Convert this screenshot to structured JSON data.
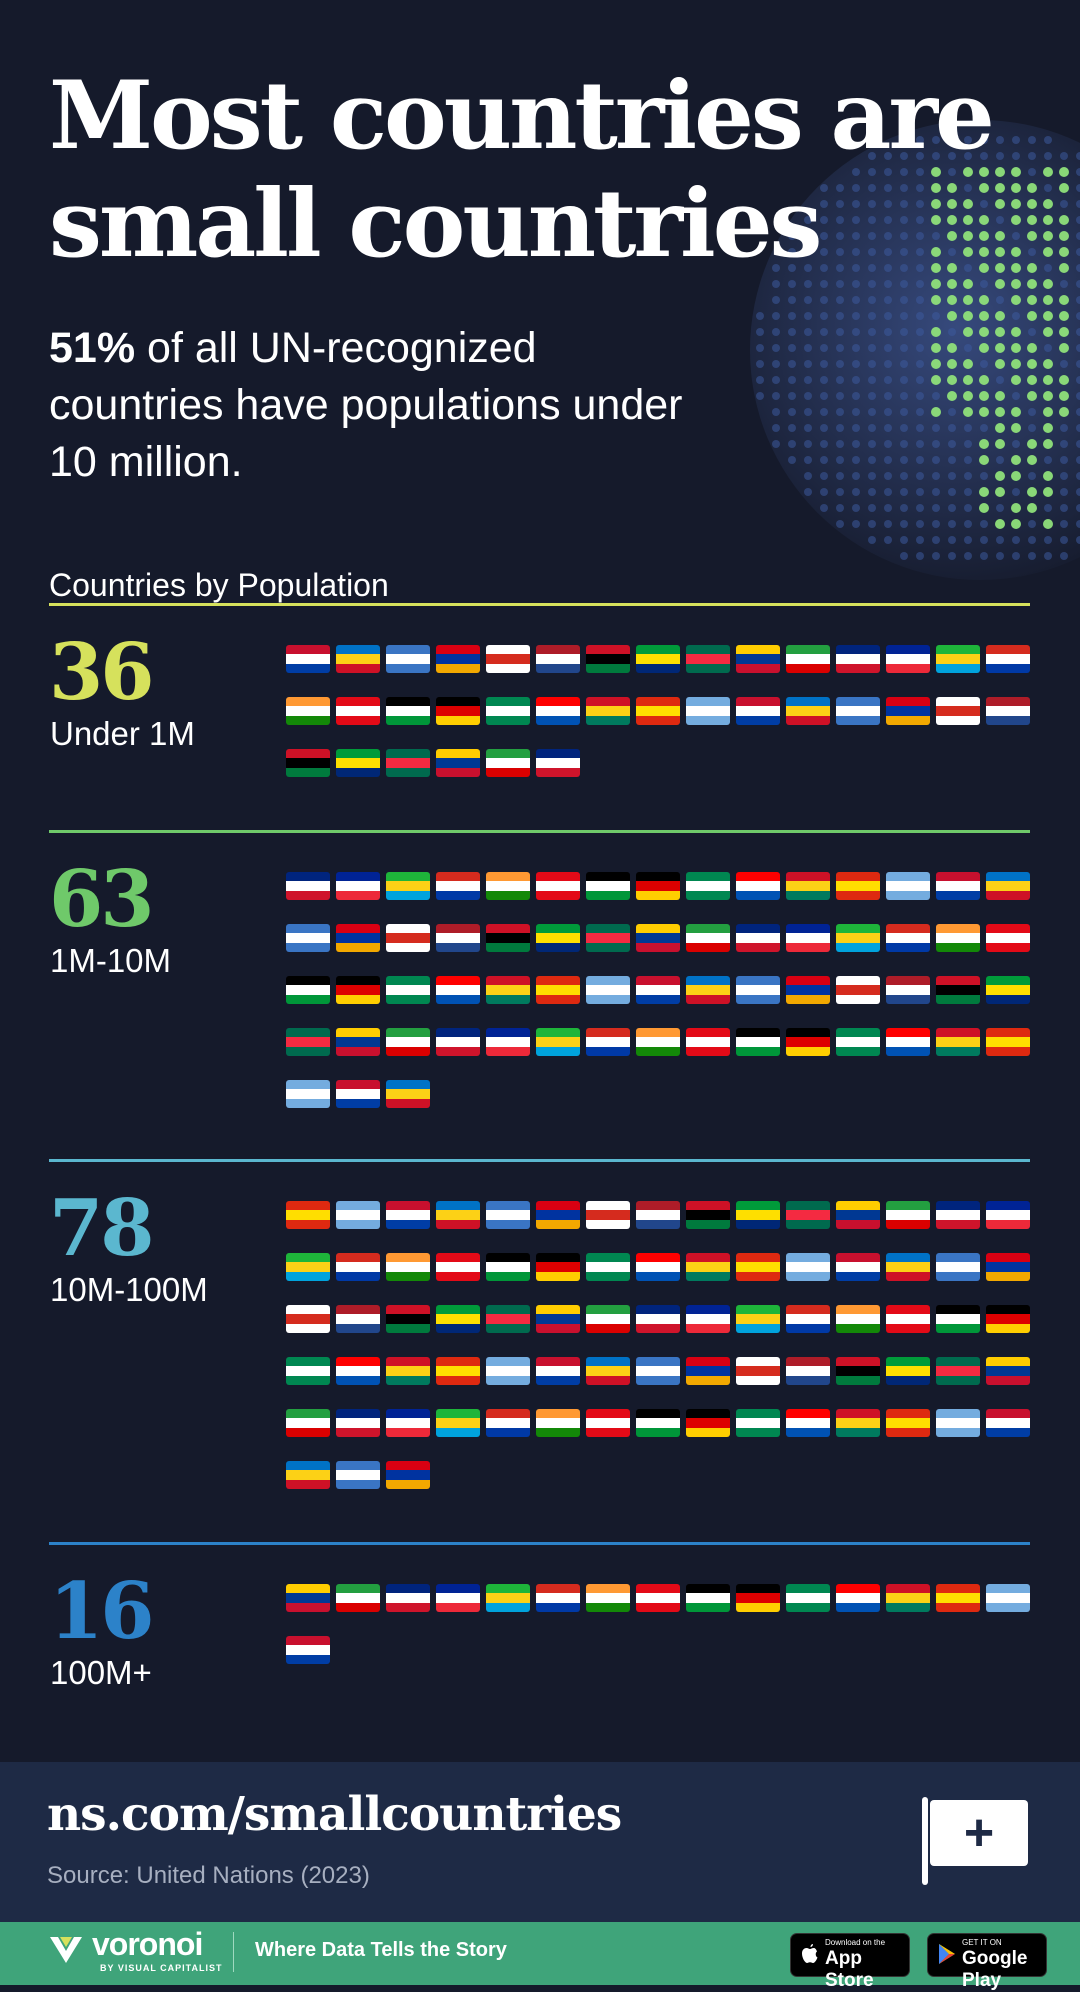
{
  "headline": "Most countries are small countries",
  "subtitle": {
    "bold": "51%",
    "rest": " of all UN-recognized countries have populations under 10 million."
  },
  "section_title": "Countries by Population",
  "footer": {
    "url": "ns.com/smallcountries",
    "source": "Source: United Nations (2023)",
    "flag_icon": "flag-plus-icon"
  },
  "bottom_bar": {
    "brand": "voronoi",
    "brand_sub": "BY VISUAL CAPITALIST",
    "tagline": "Where Data Tells the Story",
    "app_store_small": "Download on the",
    "app_store_big": "App Store",
    "play_small": "GET IT ON",
    "play_big": "Google Play"
  },
  "colors": {
    "background": "#151a2b",
    "footer": "#1e2a45",
    "bottom_bar": "#3fa47a",
    "under_1m": "#d6e15c",
    "1m_10m": "#6fc96a",
    "10m_100m": "#5bb7cf",
    "100m_plus": "#2c82c9"
  },
  "chart_data": {
    "type": "bar",
    "title": "Countries by Population",
    "categories": [
      "Under 1M",
      "1M-10M",
      "10M-100M",
      "100M+"
    ],
    "values": [
      36,
      63,
      78,
      16
    ],
    "colors": [
      "#d6e15c",
      "#6fc96a",
      "#5bb7cf",
      "#2c82c9"
    ]
  }
}
